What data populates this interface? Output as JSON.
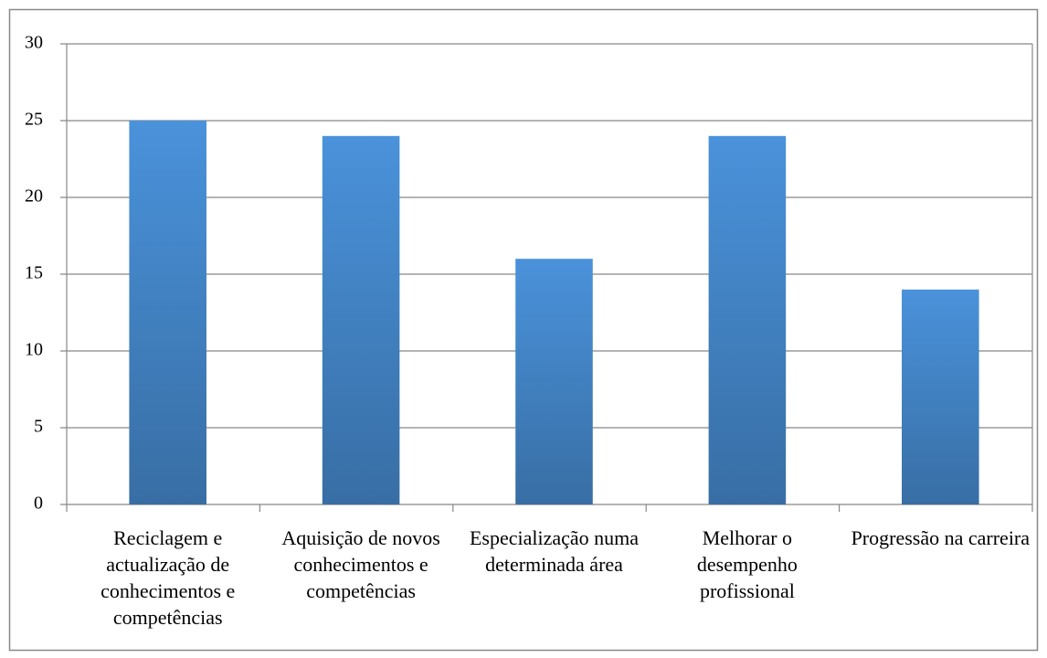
{
  "chart_data": {
    "type": "bar",
    "categories": [
      "Reciclagem e actualização de conhecimentos e competências",
      "Aquisição de novos conhecimentos e competências",
      "Especialização numa determinada área",
      "Melhorar o desempenho profissional",
      "Progressão na carreira"
    ],
    "values": [
      25,
      24,
      16,
      24,
      14
    ],
    "color": "#4a92db",
    "ylim": [
      0,
      30
    ],
    "yticks": [
      0,
      5,
      10,
      15,
      20,
      25,
      30
    ],
    "grid": true
  }
}
